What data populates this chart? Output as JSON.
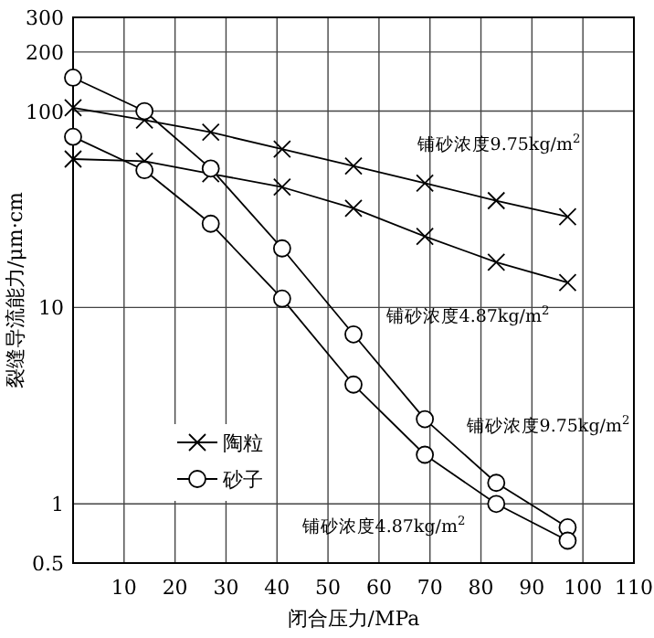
{
  "chart_data": {
    "type": "line",
    "xlabel": "闭合压力/MPa",
    "ylabel": "裂缝导流能力/μm·cm",
    "log": "y",
    "xlim": [
      0,
      110
    ],
    "xticks": [
      10,
      20,
      30,
      40,
      50,
      60,
      70,
      80,
      90,
      100,
      110
    ],
    "ylim": [
      0.5,
      300
    ],
    "yticks": [
      0.5,
      1,
      10,
      100,
      200,
      300
    ],
    "grid": true,
    "legend": "left",
    "series": [
      {
        "name": "陶粒",
        "color": "#000000",
        "marker": "cross",
        "x": [
          0,
          14,
          27,
          41,
          55,
          69,
          83,
          97
        ],
        "values": [
          104,
          90,
          78,
          64,
          52.5,
          43,
          35,
          29
        ]
      },
      {
        "color": "#000000",
        "marker": "cross",
        "x": [
          0,
          14,
          27,
          41,
          55,
          69,
          83,
          97
        ],
        "values": [
          57,
          55.6,
          48,
          41,
          32,
          23,
          17,
          13.4
        ]
      },
      {
        "name": "砂子",
        "color": "#000000",
        "marker": "circle",
        "x": [
          0,
          14,
          27,
          41,
          55,
          69,
          83,
          97
        ],
        "values": [
          148,
          100,
          51,
          20,
          7.3,
          2.7,
          1.28,
          0.76
        ]
      },
      {
        "color": "#000000",
        "marker": "circle",
        "x": [
          0,
          14,
          27,
          41,
          55,
          69,
          83,
          97
        ],
        "values": [
          74,
          50,
          26.7,
          11.1,
          4.05,
          1.78,
          1.0,
          0.65
        ]
      }
    ],
    "annotations": [
      "铺砂浓度9.75kg/m$^{2}$",
      "铺砂浓度4.87kg/m$^{2}$",
      "铺砂浓度9.75kg/m$^{2}$",
      "铺砂浓度4.87kg/m$^{2}$"
    ]
  }
}
